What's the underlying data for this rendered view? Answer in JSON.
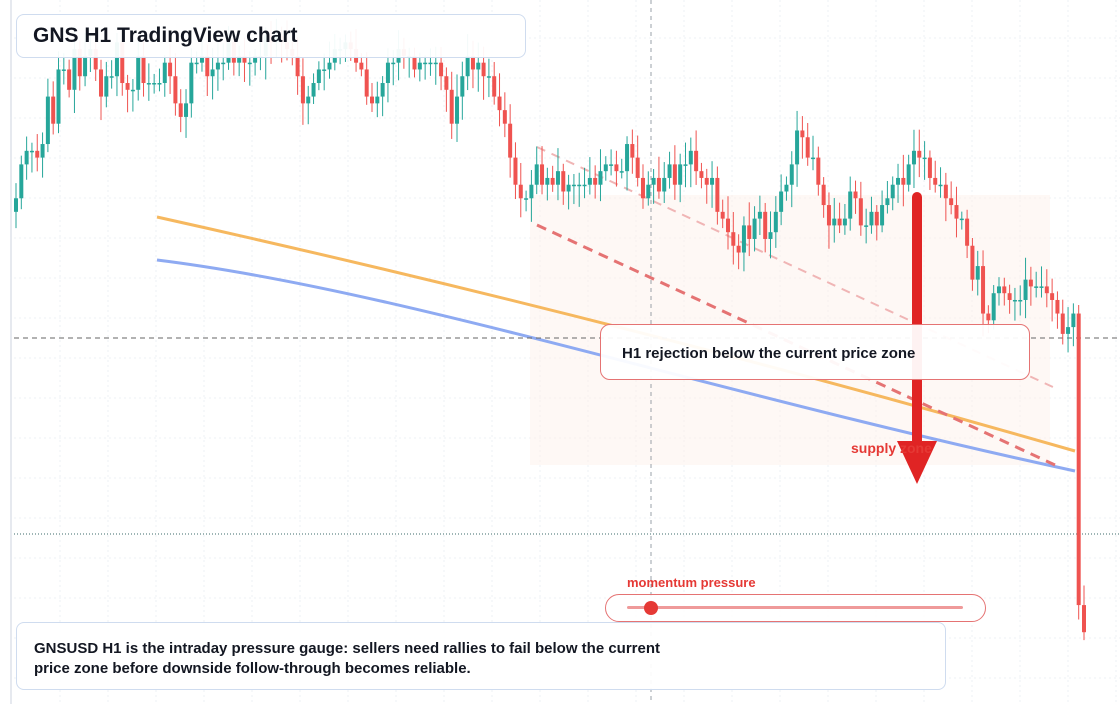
{
  "title": "GNS H1 TradingView chart",
  "zone_label": "H1 rejection below the current price zone",
  "supply_label": "supply zone",
  "momentum": {
    "label": "momentum pressure",
    "value": 0.07
  },
  "note": {
    "line1": "GNSUSD H1 is the intraday pressure gauge: sellers need rallies to fail below the current",
    "line2": "price zone before downside follow-through becomes reliable."
  },
  "colors": {
    "up": "#26a69a",
    "down": "#ef5350",
    "ma_fast": "#f6b85f",
    "ma_slow": "#8eaaf2",
    "arrow": "#e02424",
    "trend": "#e57373",
    "zone_fill": "#fdf3ec"
  },
  "chart_data": {
    "type": "candlestick",
    "timeframe": "H1",
    "symbol": "GNSUSD",
    "ylim": [
      0,
      100
    ],
    "current_price": 60.2,
    "support_line": 29.6,
    "closes": [
      74,
      79,
      81,
      81,
      80,
      82,
      89,
      85,
      93,
      93,
      90,
      96,
      92,
      95,
      96,
      93,
      89,
      92,
      92,
      97,
      91,
      90,
      90,
      95,
      91,
      91,
      91,
      91,
      94,
      92,
      88,
      86,
      88,
      94,
      94,
      95,
      92,
      93,
      94,
      94,
      97,
      94,
      95,
      94,
      94,
      95,
      95,
      98,
      97,
      98,
      97,
      96,
      95,
      92,
      88,
      89,
      91,
      93,
      93,
      94,
      96,
      96,
      97,
      96,
      94,
      93,
      89,
      88,
      89,
      91,
      94,
      94,
      96,
      95,
      95,
      93,
      94,
      94,
      94,
      94,
      92,
      90,
      85,
      89,
      92,
      95,
      93,
      94,
      92,
      92,
      89,
      87,
      85,
      80,
      76,
      74,
      74,
      76,
      79,
      76,
      77,
      76,
      78,
      75,
      76,
      76,
      76,
      76,
      77,
      76,
      78,
      79,
      79,
      78,
      78,
      82,
      80,
      77,
      74,
      76,
      77,
      75,
      77,
      79,
      76,
      79,
      79,
      81,
      78,
      77,
      76,
      77,
      72,
      71,
      69,
      67,
      66,
      70,
      68,
      71,
      72,
      68,
      69,
      72,
      75,
      76,
      79,
      84,
      83,
      80,
      80,
      76,
      73,
      70,
      71,
      70,
      71,
      75,
      74,
      70,
      70,
      72,
      70,
      73,
      74,
      76,
      77,
      76,
      79,
      81,
      80,
      80,
      77,
      76,
      76,
      74,
      73,
      71,
      71,
      67,
      62,
      64,
      57,
      56,
      60,
      61,
      60,
      59,
      59,
      59,
      62,
      61,
      61,
      61,
      60,
      59,
      57,
      54,
      55,
      57,
      14,
      10
    ]
  }
}
